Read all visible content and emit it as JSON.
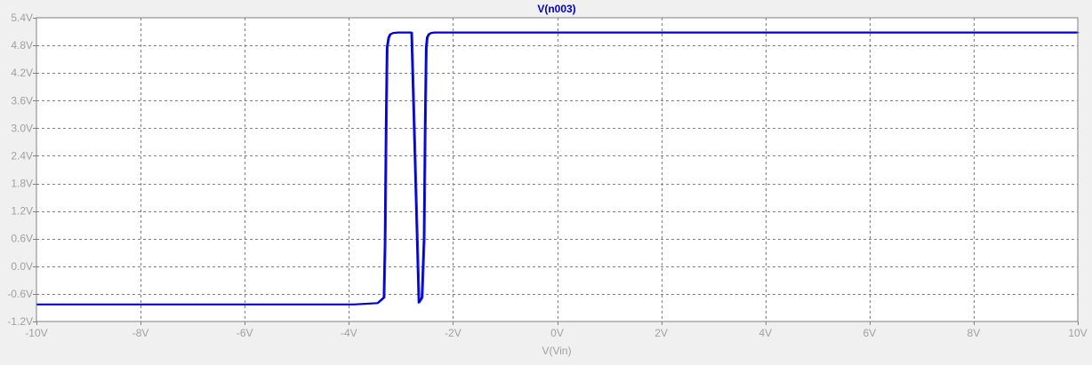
{
  "chart_data": {
    "type": "line",
    "title": "V(n003)",
    "xlabel": "V(Vin)",
    "ylabel": "",
    "xlim": [
      -10,
      10
    ],
    "ylim": [
      -1.2,
      5.4
    ],
    "x_ticks": [
      -10,
      -8,
      -6,
      -4,
      -2,
      0,
      2,
      4,
      6,
      8,
      10
    ],
    "x_tick_labels": [
      "-10V",
      "-8V",
      "-6V",
      "-4V",
      "-2V",
      "0V",
      "2V",
      "4V",
      "6V",
      "8V",
      "10V"
    ],
    "y_ticks": [
      -1.2,
      -0.6,
      0.0,
      0.6,
      1.2,
      1.8,
      2.4,
      3.0,
      3.6,
      4.2,
      4.8,
      5.4
    ],
    "y_tick_labels": [
      "-1.2V",
      "-0.6V",
      "0.0V",
      "0.6V",
      "1.2V",
      "1.8V",
      "2.4V",
      "3.0V",
      "3.6V",
      "4.2V",
      "4.8V",
      "5.4V"
    ],
    "grid": true,
    "series": [
      {
        "name": "V(n003)",
        "color": "#0000cc",
        "x": [
          -10,
          -3.9,
          -3.45,
          -3.33,
          -3.31,
          -3.29,
          -3.27,
          -3.24,
          -3.21,
          -3.15,
          -3.05,
          -2.8,
          -2.66,
          -2.6,
          -2.56,
          -2.54,
          -2.52,
          -2.5,
          -2.47,
          -2.42,
          -2.35,
          -2.2,
          -2.0,
          10
        ],
        "y": [
          -0.83,
          -0.83,
          -0.8,
          -0.68,
          0.5,
          3.0,
          4.75,
          4.97,
          5.04,
          5.07,
          5.08,
          5.08,
          -0.79,
          -0.68,
          0.6,
          3.0,
          4.75,
          4.97,
          5.04,
          5.07,
          5.08,
          5.08,
          5.08,
          5.08
        ]
      }
    ]
  }
}
